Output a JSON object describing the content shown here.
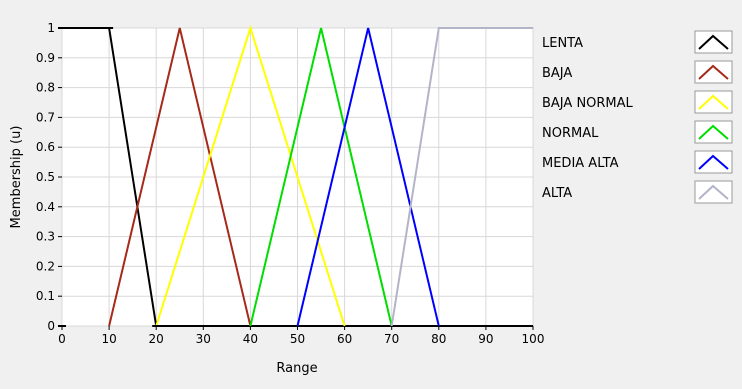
{
  "chart_data": {
    "type": "line",
    "xlabel": "Range",
    "ylabel": "Membership (u)",
    "xlim": [
      0,
      100
    ],
    "ylim": [
      0,
      1
    ],
    "xticks": [
      "0",
      "10",
      "20",
      "30",
      "40",
      "50",
      "60",
      "70",
      "80",
      "90",
      "100"
    ],
    "yticks": [
      "0",
      "0.1",
      "0.2",
      "0.3",
      "0.4",
      "0.5",
      "0.6",
      "0.7",
      "0.8",
      "0.9",
      "1"
    ],
    "grid": true,
    "legend_position": "right",
    "series": [
      {
        "name": "LENTA",
        "color": "#000000",
        "x": [
          0,
          10,
          20,
          100
        ],
        "y": [
          1,
          1,
          0,
          0
        ]
      },
      {
        "name": "BAJA",
        "color": "#a52a1a",
        "x": [
          10,
          25,
          40
        ],
        "y": [
          0,
          1,
          0
        ]
      },
      {
        "name": "BAJA NORMAL",
        "color": "#ffff00",
        "x": [
          20,
          40,
          60
        ],
        "y": [
          0,
          1,
          0
        ]
      },
      {
        "name": "NORMAL",
        "color": "#00dd00",
        "x": [
          40,
          55,
          70
        ],
        "y": [
          0,
          1,
          0
        ]
      },
      {
        "name": "MEDIA ALTA",
        "color": "#0000ff",
        "x": [
          50,
          65,
          80
        ],
        "y": [
          0,
          1,
          0
        ]
      },
      {
        "name": "ALTA",
        "color": "#b4b4c8",
        "x": [
          70,
          80,
          100
        ],
        "y": [
          0,
          1,
          1
        ]
      }
    ]
  }
}
